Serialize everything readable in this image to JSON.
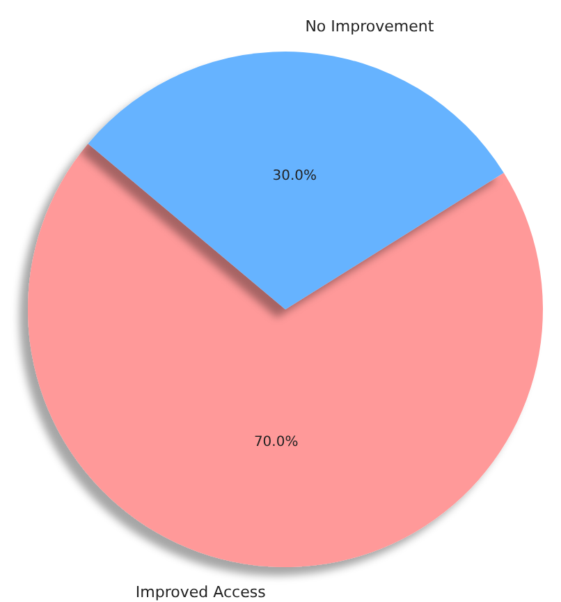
{
  "chart_data": {
    "type": "pie",
    "categories": [
      "Improved Access",
      "No Improvement"
    ],
    "values": [
      70,
      30
    ],
    "colors": [
      "#ff9999",
      "#66b3ff"
    ],
    "value_labels": [
      "70.0%",
      "30.0%"
    ]
  }
}
